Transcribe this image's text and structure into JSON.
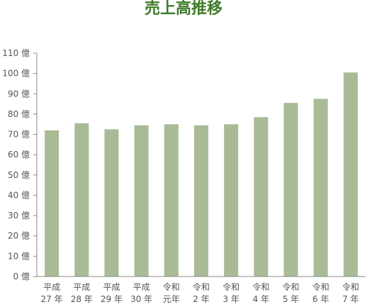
{
  "chart_data": {
    "type": "bar",
    "title": "売上高推移",
    "unit": "億",
    "categories": [
      [
        "平成",
        "27 年"
      ],
      [
        "平成",
        "28 年"
      ],
      [
        "平成",
        "29 年"
      ],
      [
        "平成",
        "30 年"
      ],
      [
        "令和",
        "元年"
      ],
      [
        "令和",
        "2 年"
      ],
      [
        "令和",
        "3 年"
      ],
      [
        "令和",
        "4 年"
      ],
      [
        "令和",
        "5 年"
      ],
      [
        "令和",
        "6 年"
      ],
      [
        "令和",
        "7 年"
      ]
    ],
    "values": [
      72,
      75.5,
      72.5,
      74.5,
      75,
      74.5,
      75,
      78.5,
      85.5,
      87.5,
      100.5
    ],
    "ylim": [
      0,
      110
    ],
    "yticks": [
      0,
      10,
      20,
      30,
      40,
      50,
      60,
      70,
      80,
      90,
      100,
      110
    ],
    "ytick_labels": [
      "0 億",
      "10 億",
      "20 億",
      "30 億",
      "40 億",
      "50 億",
      "60 億",
      "70 億",
      "80 億",
      "90 億",
      "100 億",
      "110 億"
    ],
    "grid": false,
    "bar_color": "#a9bb96",
    "title_color": "#3f7a2a"
  }
}
